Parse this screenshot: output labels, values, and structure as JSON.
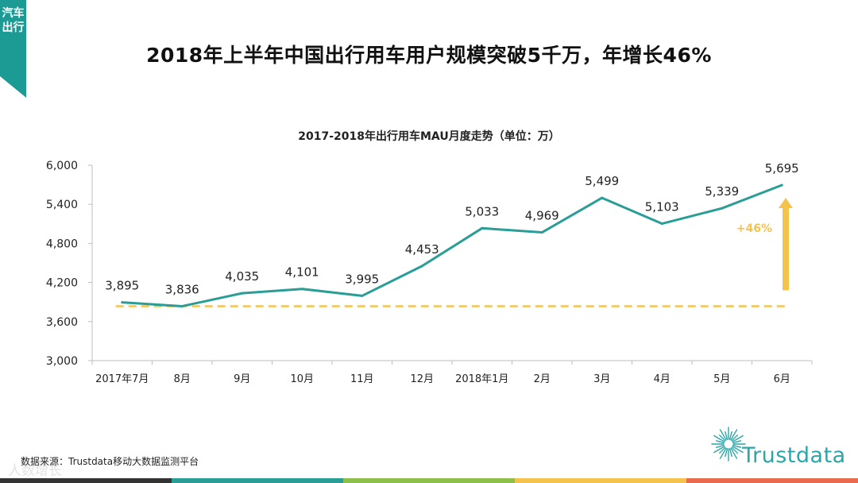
{
  "side_tag": "汽车出行",
  "main_title": "2018年上半年中国出行用车用户规模突破5千万，年增长46%",
  "source": "数据来源：Trustdata移动大数据监测平台",
  "watermark": "人数增长",
  "brand_name": "Trustdata",
  "bottom_bar_colors": [
    "#333333",
    "#2a9d96",
    "#8cc04a",
    "#f3c34e",
    "#e86a4f"
  ],
  "chart_data": {
    "type": "line",
    "title": "2017-2018年出行用车MAU月度走势（单位：万）",
    "categories": [
      "2017年7月",
      "8月",
      "9月",
      "10月",
      "11月",
      "12月",
      "2018年1月",
      "2月",
      "3月",
      "4月",
      "5月",
      "6月"
    ],
    "series": [
      {
        "values": [
          3895,
          3836,
          4035,
          4101,
          3995,
          4453,
          5033,
          4969,
          5499,
          5103,
          5339,
          5695
        ],
        "data_labels": [
          "3,895",
          "3,836",
          "4,035",
          "4,101",
          "3,995",
          "4,453",
          "5,033",
          "4,969",
          "5,499",
          "5,103",
          "5,339",
          "5,695"
        ],
        "color": "#2a9d96"
      }
    ],
    "ylim": [
      3000,
      6000
    ],
    "yticks": [
      3000,
      3600,
      4200,
      4800,
      5400,
      6000
    ],
    "ytick_labels": [
      "3,000",
      "3,600",
      "4,200",
      "4,800",
      "5,400",
      "6,000"
    ],
    "reference_line": {
      "value": 3836,
      "color": "#f3c34e",
      "style": "dashed"
    },
    "annotation": {
      "text": "+46%",
      "color": "#f3c34e"
    },
    "grid": false,
    "legend": "none"
  }
}
